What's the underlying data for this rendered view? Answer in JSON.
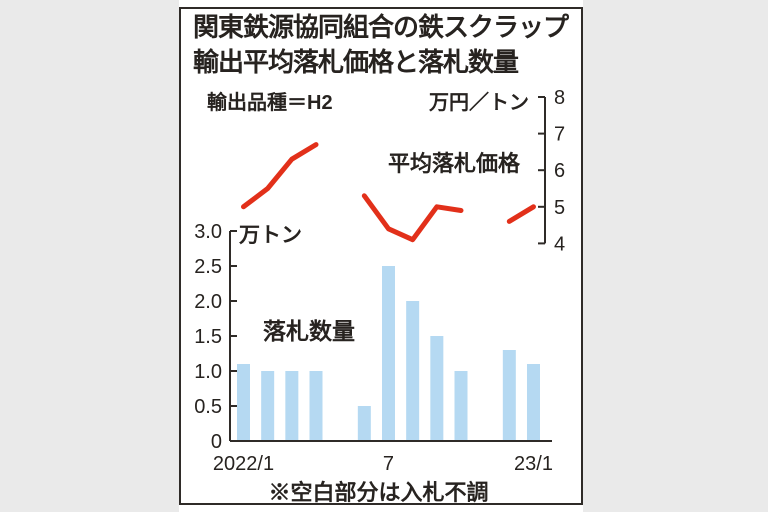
{
  "page": {
    "background_color": "#eaeaea",
    "card_background": "#ffffff",
    "card_border_color": "#2f2b28"
  },
  "header": {
    "title_line1": "関東鉄源協同組合の鉄スクラップ",
    "title_line2": "輸出平均落札価格と落札数量"
  },
  "labels": {
    "spec": "輸出品種＝H2",
    "right_axis_unit": "万円／トン",
    "left_axis_unit": "万トン",
    "line_series": "平均落札価格",
    "bar_series": "落札数量",
    "footnote": "※空白部分は入札不調"
  },
  "chart_data": {
    "type": "combo",
    "title": "関東鉄源協同組合の鉄スクラップ輸出平均落札価格と落札数量",
    "x_months": [
      "2022/1",
      "2022/2",
      "2022/3",
      "2022/4",
      "2022/5",
      "2022/6",
      "2022/7",
      "2022/8",
      "2022/9",
      "2022/10",
      "2022/11",
      "2022/12",
      "2023/1"
    ],
    "x_tick_labels": [
      {
        "label": "2022/1",
        "index": 0
      },
      {
        "label": "7",
        "index": 6
      },
      {
        "label": "23/1",
        "index": 12
      }
    ],
    "series": [
      {
        "name": "落札数量",
        "type": "bar",
        "axis": "left",
        "unit": "万トン",
        "color": "#b5d9f2",
        "values": [
          1.1,
          1.0,
          1.0,
          1.0,
          null,
          0.5,
          2.5,
          2.0,
          1.5,
          1.0,
          null,
          1.3,
          1.1
        ]
      },
      {
        "name": "平均落札価格",
        "type": "line",
        "axis": "right",
        "unit": "万円／トン",
        "color": "#e2301a",
        "values": [
          5.0,
          5.5,
          6.3,
          6.7,
          null,
          5.3,
          4.4,
          4.1,
          5.0,
          4.9,
          null,
          4.6,
          5.0
        ]
      }
    ],
    "left_axis": {
      "unit": "万トン",
      "min": 0,
      "max": 3.0,
      "tick_values": [
        3.0,
        2.5,
        2.0,
        1.5,
        1.0,
        0.5,
        0
      ],
      "tick_labels": [
        "3.0",
        "2.5",
        "2.0",
        "1.5",
        "1.0",
        "0.5",
        "0"
      ]
    },
    "right_axis": {
      "unit": "万円／トン",
      "min": 4,
      "max": 8,
      "tick_values": [
        8,
        7,
        6,
        5,
        4
      ],
      "tick_labels": [
        "8",
        "7",
        "6",
        "5",
        "4"
      ]
    }
  }
}
